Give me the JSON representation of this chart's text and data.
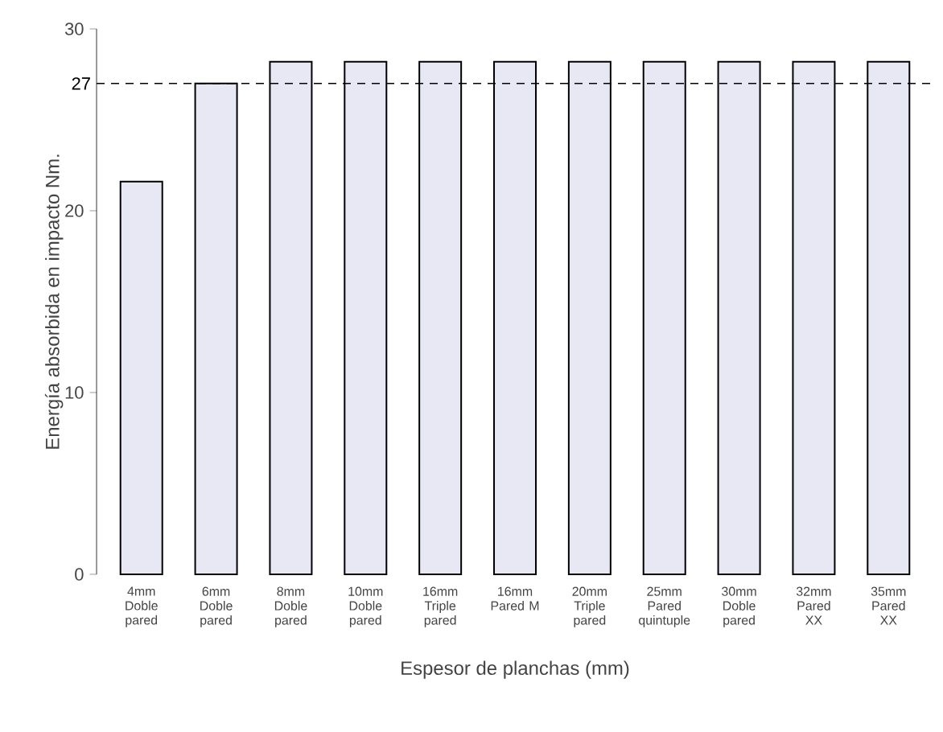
{
  "chart_data": {
    "type": "bar",
    "xlabel": "Espesor de planchas (mm)",
    "ylabel": "Energía absorbida en impacto Nm.",
    "categories": [
      "4mm Doble pared",
      "6mm Doble pared",
      "8mm Doble pared",
      "10mm Doble pared",
      "16mm Triple pared",
      "16mm Pared M",
      "20mm Triple pared",
      "25mm Pared quintuple",
      "30mm Doble pared",
      "32mm Pared XX",
      "35mm Pared XX"
    ],
    "values": [
      21.6,
      27,
      28.2,
      28.2,
      28.2,
      28.2,
      28.2,
      28.2,
      28.2,
      28.2,
      28.2
    ],
    "color": "#e8e8f4",
    "ylim": [
      0,
      30
    ],
    "yticks": [
      0,
      10,
      20,
      30
    ],
    "grid": false,
    "ref_lines": [
      {
        "axis": "y",
        "value": 27,
        "label": "27",
        "color": "#000000",
        "line_style": "dashed"
      }
    ]
  }
}
